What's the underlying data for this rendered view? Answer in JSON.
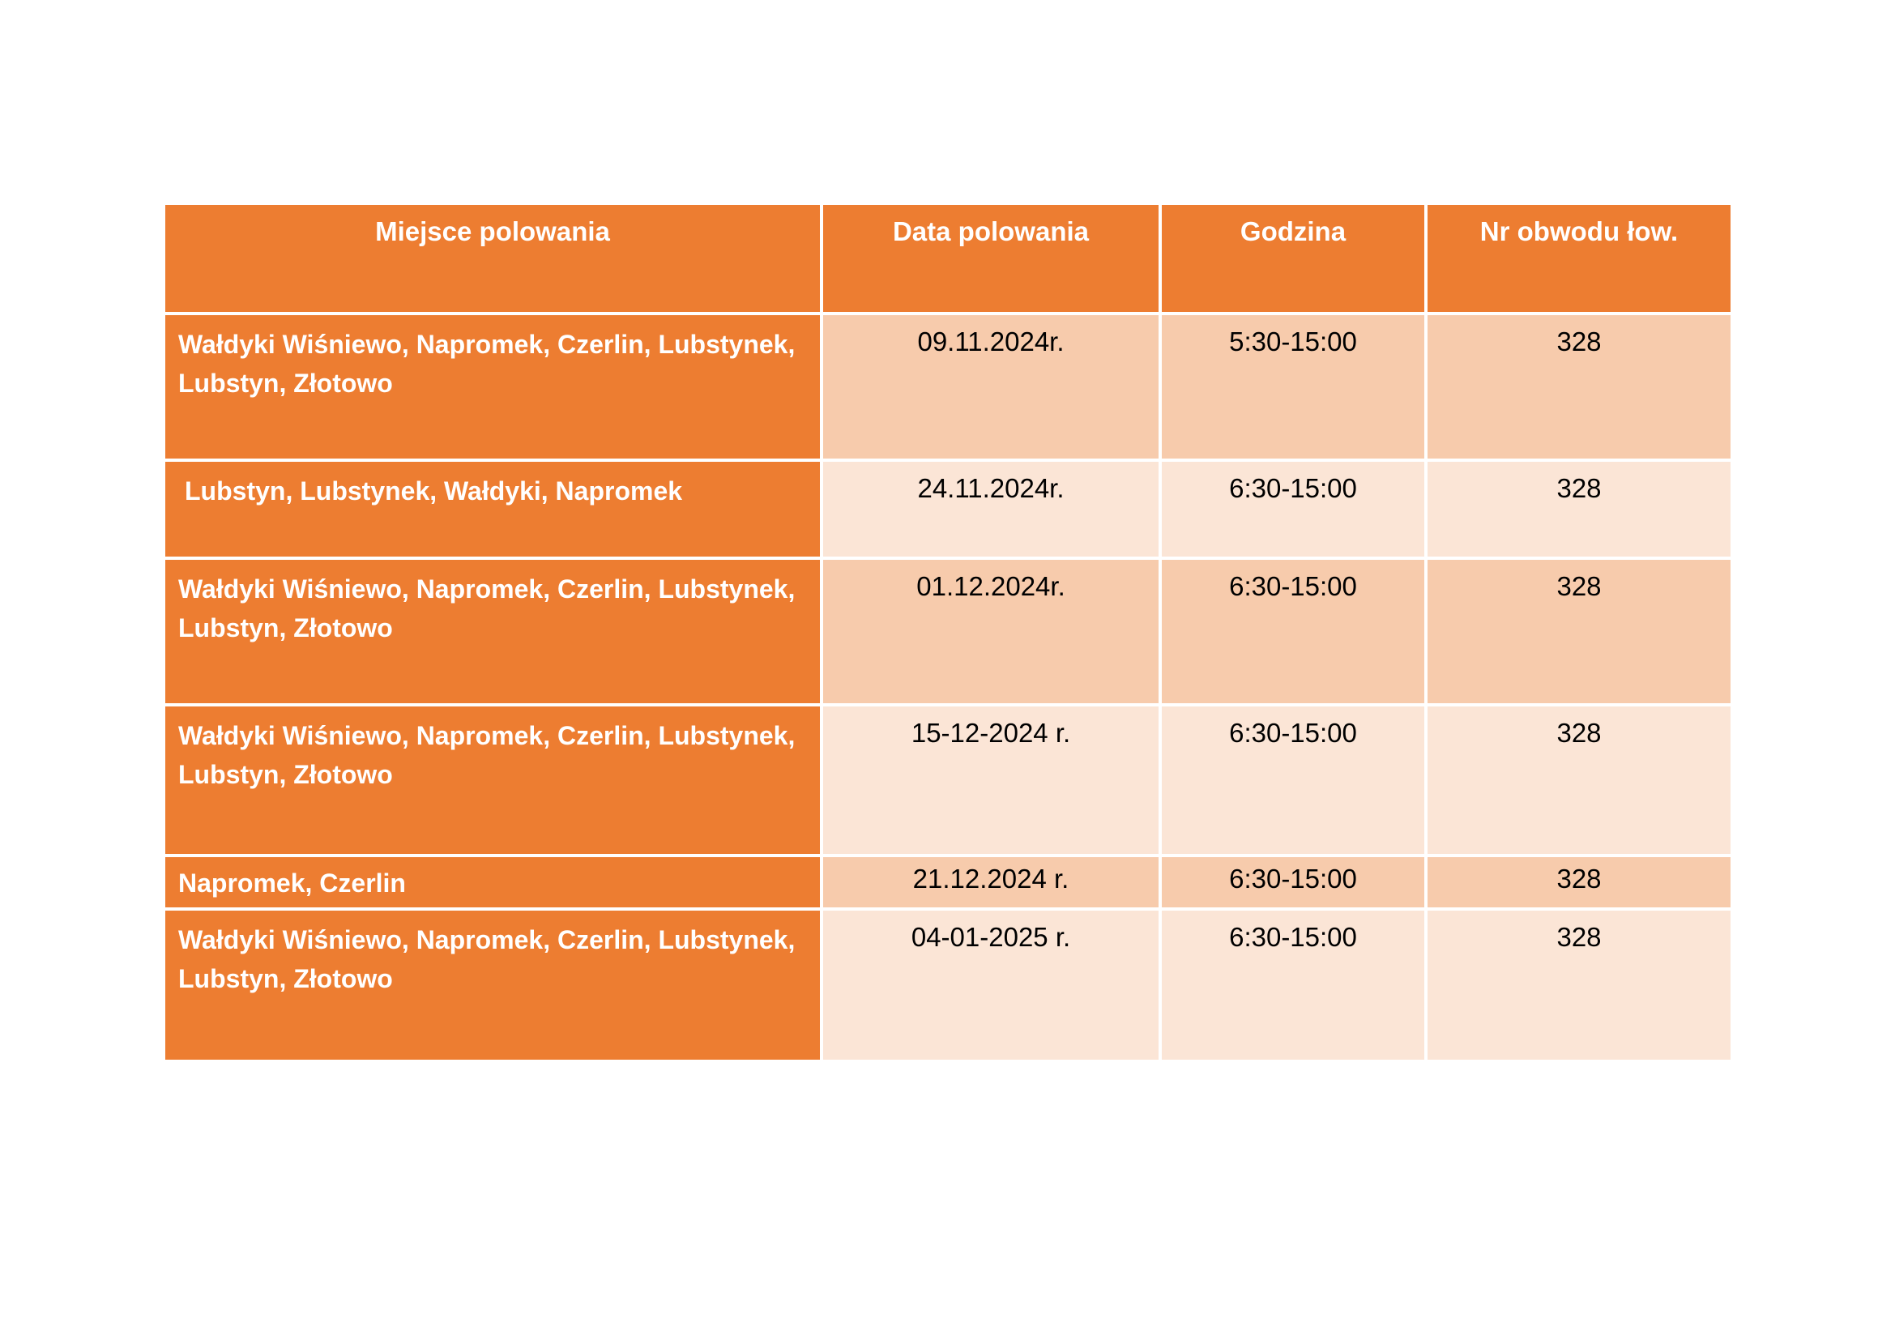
{
  "colors": {
    "accent_orange": "#ED7D31",
    "band_dark_peach": "#F7CBAC",
    "band_light_peach": "#FBE5D6",
    "header_text": "#FFFFFF",
    "body_text": "#000000",
    "gridline": "#FFFFFF",
    "page_background": "#FFFFFF"
  },
  "table": {
    "columns": {
      "place": "Miejsce polowania",
      "date": "Data polowania",
      "time": "Godzina",
      "district": "Nr obwodu łow."
    },
    "rows": [
      {
        "place": "Wałdyki Wiśniewo, Napromek, Czerlin, Lubstynek, Lubstyn, Złotowo",
        "date": "09.11.2024r.",
        "time": "5:30-15:00",
        "district": "328"
      },
      {
        "place": "Lubstyn, Lubstynek, Wałdyki, Napromek",
        "date": "24.11.2024r.",
        "time": "6:30-15:00",
        "district": "328"
      },
      {
        "place": "Wałdyki Wiśniewo, Napromek, Czerlin, Lubstynek, Lubstyn, Złotowo",
        "date": "01.12.2024r.",
        "time": "6:30-15:00",
        "district": "328"
      },
      {
        "place": "Wałdyki Wiśniewo, Napromek, Czerlin, Lubstynek, Lubstyn, Złotowo",
        "date": "15-12-2024 r.",
        "time": "6:30-15:00",
        "district": "328"
      },
      {
        "place": "Napromek, Czerlin",
        "date": "21.12.2024 r.",
        "time": "6:30-15:00",
        "district": "328"
      },
      {
        "place": "Wałdyki Wiśniewo, Napromek, Czerlin, Lubstynek, Lubstyn, Złotowo",
        "date": "04-01-2025 r.",
        "time": "6:30-15:00",
        "district": "328"
      }
    ]
  }
}
